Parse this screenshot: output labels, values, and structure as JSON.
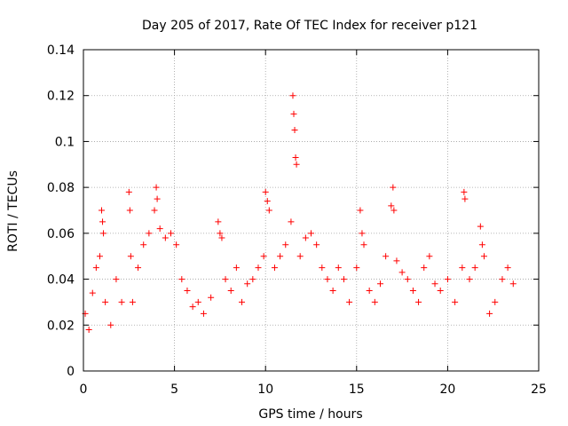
{
  "chart_data": {
    "type": "scatter",
    "title": "Day 205 of 2017, Rate Of TEC Index for receiver p121",
    "xlabel": "GPS time / hours",
    "ylabel": "ROTI / TECUs",
    "xlim": [
      0,
      25
    ],
    "ylim": [
      0,
      0.14
    ],
    "x_ticks": [
      "0",
      "5",
      "10",
      "15",
      "20",
      "25"
    ],
    "y_ticks": [
      "0",
      "0.02",
      "0.04",
      "0.06",
      "0.08",
      "0.1",
      "0.12",
      "0.14"
    ],
    "grid": true,
    "marker": "plus",
    "color": "#ff0000",
    "series": [
      {
        "x": [
          0.1,
          0.3,
          0.5,
          0.7,
          0.9,
          1.0,
          1.05,
          1.1,
          1.2,
          1.5,
          1.8,
          2.1,
          2.5,
          2.55,
          2.6,
          2.7,
          3.0,
          3.3,
          3.6,
          3.9,
          4.0,
          4.05,
          4.2,
          4.5,
          4.8,
          5.1,
          5.4,
          5.7,
          6.0,
          6.3,
          6.6,
          7.0,
          7.4,
          7.5,
          7.6,
          7.8,
          8.1,
          8.4,
          8.7,
          9.0,
          9.3,
          9.6,
          9.9,
          10.0,
          10.1,
          10.2,
          10.5,
          10.8,
          11.1,
          11.4,
          11.5,
          11.55,
          11.6,
          11.65,
          11.7,
          11.9,
          12.2,
          12.5,
          12.8,
          13.1,
          13.4,
          13.7,
          14.0,
          14.3,
          14.6,
          15.0,
          15.2,
          15.3,
          15.4,
          15.7,
          16.0,
          16.3,
          16.6,
          16.9,
          17.0,
          17.05,
          17.2,
          17.5,
          17.8,
          18.1,
          18.4,
          18.7,
          19.0,
          19.3,
          19.6,
          20.0,
          20.4,
          20.8,
          20.9,
          20.95,
          21.2,
          21.5,
          21.8,
          21.9,
          22.0,
          22.3,
          22.6,
          23.0,
          23.3,
          23.6
        ],
        "y": [
          0.025,
          0.018,
          0.034,
          0.045,
          0.05,
          0.07,
          0.065,
          0.06,
          0.03,
          0.02,
          0.04,
          0.03,
          0.078,
          0.07,
          0.05,
          0.03,
          0.045,
          0.055,
          0.06,
          0.07,
          0.08,
          0.075,
          0.062,
          0.058,
          0.06,
          0.055,
          0.04,
          0.035,
          0.028,
          0.03,
          0.025,
          0.032,
          0.065,
          0.06,
          0.058,
          0.04,
          0.035,
          0.045,
          0.03,
          0.038,
          0.04,
          0.045,
          0.05,
          0.078,
          0.074,
          0.07,
          0.045,
          0.05,
          0.055,
          0.065,
          0.12,
          0.112,
          0.105,
          0.093,
          0.09,
          0.05,
          0.058,
          0.06,
          0.055,
          0.045,
          0.04,
          0.035,
          0.045,
          0.04,
          0.03,
          0.045,
          0.07,
          0.06,
          0.055,
          0.035,
          0.03,
          0.038,
          0.05,
          0.072,
          0.08,
          0.07,
          0.048,
          0.043,
          0.04,
          0.035,
          0.03,
          0.045,
          0.05,
          0.038,
          0.035,
          0.04,
          0.03,
          0.045,
          0.078,
          0.075,
          0.04,
          0.045,
          0.063,
          0.055,
          0.05,
          0.025,
          0.03,
          0.04,
          0.045,
          0.038
        ]
      }
    ]
  }
}
